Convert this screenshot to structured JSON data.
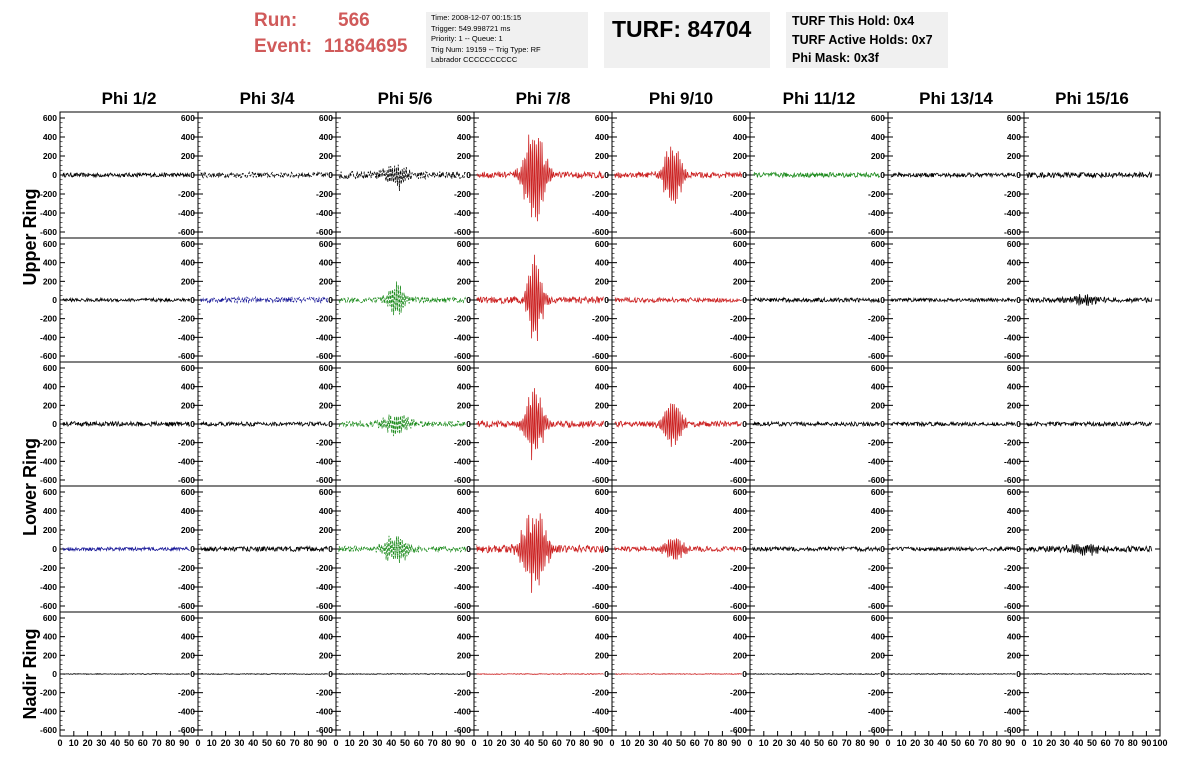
{
  "header": {
    "run_label": "Run:",
    "run_value": "566",
    "event_label": "Event:",
    "event_value": "11864695",
    "info_lines": [
      "Time: 2008-12-07 00:15:15",
      "Trigger: 549.998721 ms",
      "Priority: 1 -- Queue: 1",
      "Trig Num: 19159 -- Trig Type: RF",
      "Labrador CCCCCCCCCC"
    ],
    "turf_text": "TURF: 84704",
    "turf_info_lines": [
      "TURF This Hold: 0x4",
      "TURF Active Holds: 0x7",
      "Phi Mask: 0x3f"
    ]
  },
  "colors": {
    "header_red": "#d05a5a",
    "box_gray": "#f0f0f0",
    "trace_black": "#000000",
    "trace_red": "#cc2222",
    "trace_green": "#1a8a1a",
    "trace_blue": "#1a1a99"
  },
  "chart_data": {
    "type": "line",
    "columns": [
      "Phi 1/2",
      "Phi 3/4",
      "Phi 5/6",
      "Phi 7/8",
      "Phi 9/10",
      "Phi 11/12",
      "Phi 13/14",
      "Phi 15/16"
    ],
    "ring_labels": [
      "Upper Ring",
      "Lower Ring",
      "Nadir Ring"
    ],
    "ring_rows": [
      [
        0,
        1
      ],
      [
        2,
        3
      ],
      [
        4
      ]
    ],
    "y_ticks": [
      600,
      400,
      200,
      0,
      -200,
      -400,
      -600
    ],
    "x_ticks": [
      "0",
      "10",
      "20",
      "30",
      "40",
      "50",
      "60",
      "70",
      "80",
      "90",
      "100"
    ],
    "ylim": [
      -600,
      600
    ],
    "xlim": [
      0,
      100
    ],
    "grid": false,
    "traces": [
      [
        {
          "color": "black",
          "amp": 22,
          "peak": 0,
          "width": 0,
          "dashed": false
        },
        {
          "color": "black",
          "amp": 28,
          "peak": 0,
          "width": 0,
          "dashed": true
        },
        {
          "color": "black",
          "amp": 40,
          "peak": 140,
          "width": 12,
          "dashed": true
        },
        {
          "color": "red",
          "amp": 35,
          "peak": 500,
          "width": 12,
          "dashed": false
        },
        {
          "color": "red",
          "amp": 30,
          "peak": 380,
          "width": 10,
          "dashed": false
        },
        {
          "color": "green",
          "amp": 25,
          "peak": 0,
          "width": 0,
          "dashed": false
        },
        {
          "color": "black",
          "amp": 22,
          "peak": 0,
          "width": 0,
          "dashed": false
        },
        {
          "color": "black",
          "amp": 28,
          "peak": 0,
          "width": 0,
          "dashed": false
        }
      ],
      [
        {
          "color": "black",
          "amp": 18,
          "peak": 0,
          "width": 0,
          "dashed": false
        },
        {
          "color": "blue",
          "amp": 30,
          "peak": 0,
          "width": 0,
          "dashed": true
        },
        {
          "color": "green",
          "amp": 30,
          "peak": 220,
          "width": 10,
          "dashed": true
        },
        {
          "color": "red",
          "amp": 35,
          "peak": 540,
          "width": 8,
          "dashed": false
        },
        {
          "color": "red",
          "amp": 25,
          "peak": 0,
          "width": 0,
          "dashed": false
        },
        {
          "color": "black",
          "amp": 22,
          "peak": 0,
          "width": 0,
          "dashed": false
        },
        {
          "color": "black",
          "amp": 18,
          "peak": 0,
          "width": 0,
          "dashed": false
        },
        {
          "color": "black",
          "amp": 26,
          "peak": 60,
          "width": 18,
          "dashed": false
        }
      ],
      [
        {
          "color": "black",
          "amp": 25,
          "peak": 0,
          "width": 0,
          "dashed": false
        },
        {
          "color": "black",
          "amp": 22,
          "peak": 0,
          "width": 0,
          "dashed": false
        },
        {
          "color": "green",
          "amp": 30,
          "peak": 120,
          "width": 14,
          "dashed": true
        },
        {
          "color": "red",
          "amp": 35,
          "peak": 420,
          "width": 10,
          "dashed": false
        },
        {
          "color": "red",
          "amp": 30,
          "peak": 300,
          "width": 10,
          "dashed": false
        },
        {
          "color": "black",
          "amp": 22,
          "peak": 0,
          "width": 0,
          "dashed": false
        },
        {
          "color": "black",
          "amp": 20,
          "peak": 0,
          "width": 0,
          "dashed": false
        },
        {
          "color": "black",
          "amp": 22,
          "peak": 0,
          "width": 0,
          "dashed": false
        }
      ],
      [
        {
          "color": "blue",
          "amp": 18,
          "peak": 0,
          "width": 0,
          "dashed": false
        },
        {
          "color": "black",
          "amp": 25,
          "peak": 0,
          "width": 0,
          "dashed": false
        },
        {
          "color": "green",
          "amp": 30,
          "peak": 160,
          "width": 14,
          "dashed": true
        },
        {
          "color": "red",
          "amp": 40,
          "peak": 460,
          "width": 14,
          "dashed": false
        },
        {
          "color": "red",
          "amp": 28,
          "peak": 140,
          "width": 12,
          "dashed": false
        },
        {
          "color": "black",
          "amp": 22,
          "peak": 0,
          "width": 0,
          "dashed": false
        },
        {
          "color": "black",
          "amp": 20,
          "peak": 0,
          "width": 0,
          "dashed": false
        },
        {
          "color": "black",
          "amp": 30,
          "peak": 60,
          "width": 18,
          "dashed": false
        }
      ],
      [
        {
          "color": "black",
          "amp": 4,
          "peak": 0,
          "width": 0,
          "dashed": false
        },
        {
          "color": "black",
          "amp": 4,
          "peak": 0,
          "width": 0,
          "dashed": false
        },
        {
          "color": "black",
          "amp": 4,
          "peak": 0,
          "width": 0,
          "dashed": false
        },
        {
          "color": "red",
          "amp": 4,
          "peak": 0,
          "width": 0,
          "dashed": false
        },
        {
          "color": "red",
          "amp": 4,
          "peak": 0,
          "width": 0,
          "dashed": false
        },
        {
          "color": "black",
          "amp": 4,
          "peak": 0,
          "width": 0,
          "dashed": false
        },
        {
          "color": "black",
          "amp": 4,
          "peak": 0,
          "width": 0,
          "dashed": false
        },
        {
          "color": "black",
          "amp": 4,
          "peak": 0,
          "width": 0,
          "dashed": false
        }
      ]
    ]
  }
}
